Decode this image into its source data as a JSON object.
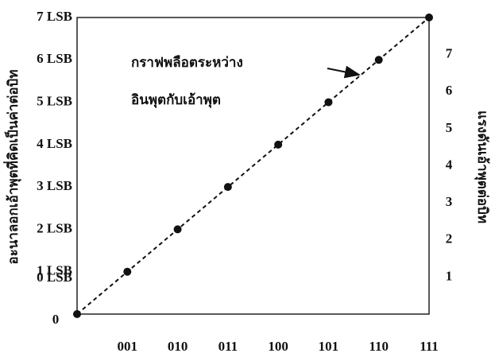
{
  "chart_data": {
    "type": "line",
    "y_label": "อะนาลอกเอ้าพุตที่คิดเป็นค่าต่อบิท",
    "y2_label": "แรงดันเอ้าพุตต่อบิท",
    "annotation": [
      "กราฟพลือตระหว่าง",
      "อินพุตกับเอ้าพุต"
    ],
    "x": [
      0,
      1,
      2,
      3,
      4,
      5,
      6,
      7
    ],
    "series": [
      {
        "color": "#111111",
        "values": [
          0,
          1,
          2,
          3,
          4,
          5,
          6,
          7
        ]
      }
    ],
    "xlim": [
      0,
      7
    ],
    "xticks": [
      0,
      {
        "value": 1,
        "label": "001"
      },
      {
        "value": 2,
        "label": "010"
      },
      {
        "value": 3,
        "label": "011"
      },
      {
        "value": 4,
        "label": "100"
      },
      {
        "value": 5,
        "label": "101"
      },
      {
        "value": 6,
        "label": "110"
      },
      {
        "value": 7,
        "label": "111"
      }
    ],
    "ylim": [
      0,
      7
    ],
    "yticks": [
      {
        "value": 0,
        "label": "0 LSB"
      },
      {
        "value": 1,
        "label": "1 LSB"
      },
      {
        "value": 2,
        "label": "2 LSB"
      },
      {
        "value": 3,
        "label": "3 LSB"
      },
      {
        "value": 4,
        "label": "4 LSB"
      },
      {
        "value": 5,
        "label": "5 LSB"
      },
      {
        "value": 6,
        "label": "6 LSB"
      },
      {
        "value": 7,
        "label": "7 LSB"
      }
    ],
    "y2lim": [
      0,
      8
    ],
    "y2ticks": [
      1,
      2,
      3,
      4,
      5,
      6,
      7
    ],
    "line_style": "dashed"
  }
}
